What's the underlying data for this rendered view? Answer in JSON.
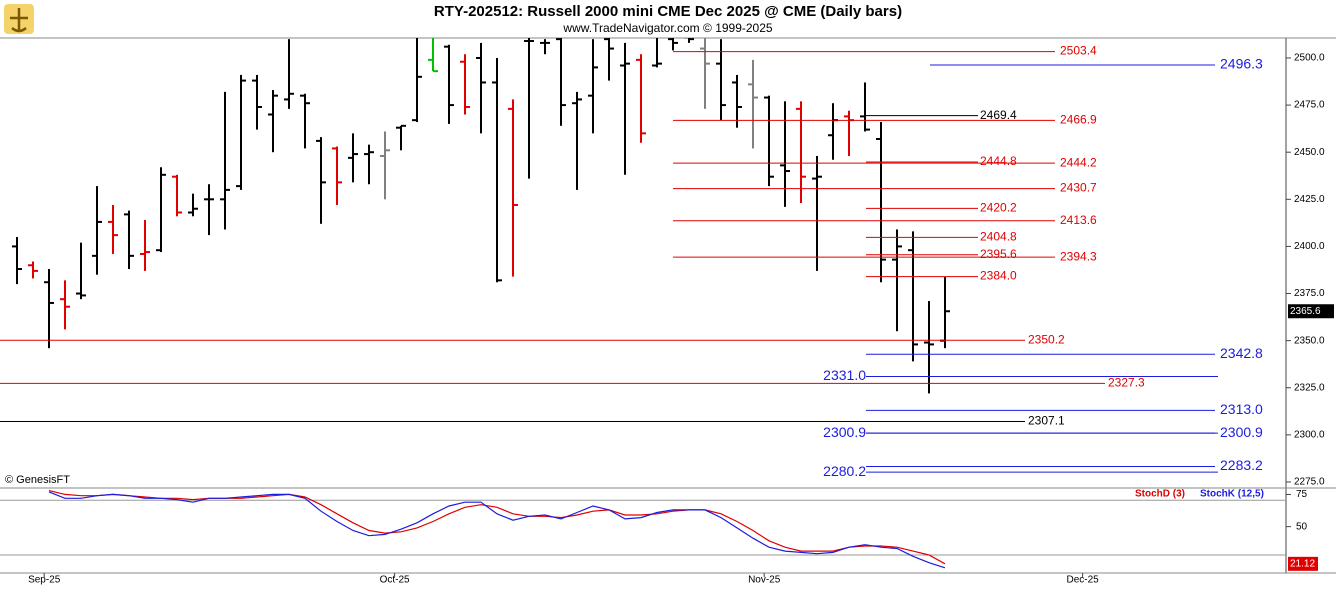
{
  "chart_data": [
    {
      "type": "ohlc",
      "title": "RTY-202512:  Russell 2000 mini CME Dec 2025 @ CME  (Daily bars)",
      "subtitle": "www.TradeNavigator.com © 1999-2025",
      "note": "© GenesisFT",
      "categories": [
        null,
        null,
        null,
        null,
        null,
        null,
        null,
        null,
        null,
        null,
        null,
        null,
        null,
        null,
        null,
        null,
        null,
        null,
        null,
        null,
        null,
        null,
        null,
        null,
        null,
        null,
        null,
        null,
        null,
        null,
        null,
        null,
        null,
        null,
        null,
        null,
        null,
        null,
        null,
        null,
        null,
        null,
        null,
        null,
        null,
        null,
        null,
        null,
        null,
        null,
        null,
        null,
        null,
        null,
        null,
        null,
        null,
        null,
        null
      ],
      "xlim": [
        -1.0625,
        79.3125
      ],
      "xticks": [
        {
          "value": 1.7,
          "label": "Sep-25"
        },
        {
          "value": 23.6,
          "label": "Oct-25"
        },
        {
          "value": 46.7,
          "label": "Nov-25"
        },
        {
          "value": 66.6,
          "label": "Dec-25"
        }
      ],
      "ylim": [
        2271.8,
        2510.6
      ],
      "yticks": [
        {
          "value": 2275,
          "label": "2275.0"
        },
        {
          "value": 2300,
          "label": "2300.0"
        },
        {
          "value": 2325,
          "label": "2325.0"
        },
        {
          "value": 2350,
          "label": "2350.0"
        },
        {
          "value": 2375,
          "label": "2375.0"
        },
        {
          "value": 2400,
          "label": "2400.0"
        },
        {
          "value": 2425,
          "label": "2425.0"
        },
        {
          "value": 2450,
          "label": "2450.0"
        },
        {
          "value": 2475,
          "label": "2475.0"
        },
        {
          "value": 2500,
          "label": "2500.0"
        }
      ],
      "series": [
        {
          "open": [
            2400,
            2390,
            2381,
            2372,
            2375,
            2395,
            2413,
            2417,
            2396,
            2398,
            2437,
            2418,
            2425,
            2425,
            2432,
            2488,
            2470,
            2478,
            2480,
            2456,
            2452,
            2447,
            2449,
            2448,
            2463,
            2467,
            2499,
            2506,
            2498,
            2500,
            2487,
            2473,
            2509,
            2508,
            2510,
            2476,
            2480,
            2510,
            2496,
            2499,
            2496,
            2510,
            2511,
            2505,
            2497,
            2487,
            2486,
            2479,
            2443,
            2473,
            2436,
            2459,
            2469,
            2469,
            2457,
            2393,
            2398,
            2349,
            2350
          ],
          "high": [
            2405,
            2392,
            2388,
            2382,
            2402,
            2432,
            2422,
            2419,
            2414,
            2442,
            2438,
            2428,
            2433,
            2482,
            2491,
            2491,
            2483,
            2510,
            2481,
            2458,
            2453,
            2460,
            2454,
            2461,
            2464,
            2511,
            2511,
            2507,
            2502,
            2508,
            2500,
            2478,
            2511,
            2510,
            2511,
            2482,
            2510,
            2511,
            2508,
            2502,
            2511,
            2516,
            2513,
            2511,
            2510,
            2491,
            2499,
            2480,
            2477,
            2477,
            2448,
            2476,
            2472,
            2487,
            2466,
            2409,
            2408,
            2371,
            2384
          ],
          "low": [
            2380,
            2383,
            2346,
            2356,
            2372,
            2385,
            2396,
            2388,
            2387,
            2397,
            2416,
            2416,
            2406,
            2409,
            2430,
            2462,
            2450,
            2473,
            2452,
            2412,
            2422,
            2434,
            2433,
            2425,
            2451,
            2466,
            2493,
            2465,
            2470,
            2460,
            2381,
            2384,
            2436,
            2502,
            2464,
            2430,
            2460,
            2488,
            2438,
            2455,
            2495,
            2504,
            2508,
            2473,
            2467,
            2463,
            2452,
            2432,
            2421,
            2423,
            2387,
            2446,
            2448,
            2461,
            2381,
            2355,
            2339,
            2322,
            2346
          ],
          "close": [
            2388,
            2387,
            2370,
            2368,
            2374,
            2413,
            2406,
            2395,
            2397,
            2438,
            2418,
            2420,
            2425,
            2430,
            2488,
            2474,
            2480,
            2481,
            2476,
            2434,
            2434,
            2449,
            2450,
            2451,
            2464,
            2490,
            2493,
            2475,
            2474,
            2487,
            2382,
            2422,
            2509,
            2508,
            2475,
            2478,
            2495,
            2505,
            2497,
            2460,
            2497,
            2508,
            2510,
            2497,
            2475,
            2474,
            2479,
            2437,
            2440,
            2437,
            2437,
            2467,
            2467,
            2462,
            2393,
            2400,
            2348,
            2348,
            2365.6
          ],
          "colors": [
            "#000000",
            "#e00000",
            "#000000",
            "#e00000",
            "#000000",
            "#000000",
            "#e00000",
            "#000000",
            "#e00000",
            "#000000",
            "#e00000",
            "#000000",
            "#000000",
            "#000000",
            "#000000",
            "#000000",
            "#000000",
            "#000000",
            "#000000",
            "#000000",
            "#e00000",
            "#000000",
            "#000000",
            "#808080",
            "#000000",
            "#000000",
            "#00c000",
            "#000000",
            "#e00000",
            "#000000",
            "#000000",
            "#e00000",
            "#000000",
            "#000000",
            "#000000",
            "#000000",
            "#000000",
            "#000000",
            "#000000",
            "#e00000",
            "#000000",
            "#000000",
            "#000000",
            "#808080",
            "#000000",
            "#000000",
            "#808080",
            "#000000",
            "#000000",
            "#e00000",
            "#000000",
            "#000000",
            "#e00000",
            "#000000",
            "#000000",
            "#000000",
            "#000000",
            "#000000",
            "#000000"
          ]
        }
      ],
      "levels": [
        {
          "value": 2503.4,
          "label": "2503.4",
          "color": "#e00000"
        },
        {
          "value": 2496.3,
          "label": "2496.3",
          "color": "#1c1ce0"
        },
        {
          "value": 2469.4,
          "label": "2469.4",
          "color": "#000000"
        },
        {
          "value": 2466.9,
          "label": "2466.9",
          "color": "#e00000"
        },
        {
          "value": 2444.8,
          "label": "2444.8",
          "color": "#e00000"
        },
        {
          "value": 2444.2,
          "label": "2444.2",
          "color": "#e00000"
        },
        {
          "value": 2430.7,
          "label": "2430.7",
          "color": "#e00000"
        },
        {
          "value": 2420.2,
          "label": "2420.2",
          "color": "#e00000"
        },
        {
          "value": 2413.6,
          "label": "2413.6",
          "color": "#e00000"
        },
        {
          "value": 2404.8,
          "label": "2404.8",
          "color": "#e00000"
        },
        {
          "value": 2395.6,
          "label": "2395.6",
          "color": "#e00000"
        },
        {
          "value": 2394.3,
          "label": "2394.3",
          "color": "#e00000"
        },
        {
          "value": 2384.0,
          "label": "2384.0",
          "color": "#e00000"
        },
        {
          "value": 2350.2,
          "label": "2350.2",
          "color": "#e00000"
        },
        {
          "value": 2342.8,
          "label": "2342.8",
          "color": "#1c1ce0"
        },
        {
          "value": 2331.0,
          "label": "2331.0",
          "color": "#1c1ce0"
        },
        {
          "value": 2327.3,
          "label": "2327.3",
          "color": "#e00000"
        },
        {
          "value": 2313.0,
          "label": "2313.0",
          "color": "#1c1ce0"
        },
        {
          "value": 2307.1,
          "label": "2307.1",
          "color": "#000000"
        },
        {
          "value": 2300.9,
          "label": "2300.9",
          "color": "#1c1ce0"
        },
        {
          "value": 2300.9,
          "label": "2300.9",
          "color": "#1c1ce0"
        },
        {
          "value": 2283.2,
          "label": "2283.2",
          "color": "#1c1ce0"
        },
        {
          "value": 2280.2,
          "label": "2280.2",
          "color": "#1c1ce0"
        }
      ]
    },
    {
      "type": "line",
      "ylim": [
        14,
        80
      ],
      "yticks": [
        75,
        50
      ],
      "ref_lines": [
        70.5,
        28
      ],
      "series": [
        {
          "name": "StochD (3)",
          "color": "#e00000",
          "values": [
            null,
            null,
            78,
            75,
            74,
            74,
            75,
            74,
            73,
            72,
            72,
            71,
            72,
            72,
            72,
            73,
            74,
            75,
            73,
            67,
            60,
            53,
            47,
            45,
            46,
            49,
            54,
            60,
            65,
            67,
            65,
            60,
            58,
            58,
            57,
            59,
            62,
            63,
            59,
            59,
            60,
            62,
            63,
            63,
            60,
            54,
            47,
            39,
            34,
            31,
            31,
            31,
            34,
            35,
            35,
            34,
            31,
            28,
            21.12
          ]
        },
        {
          "name": "StochK (12,5)",
          "color": "#1c1ce0",
          "values": [
            null,
            null,
            77,
            72,
            72,
            74,
            75,
            74,
            72,
            72,
            71,
            69,
            72,
            72,
            73,
            74,
            75,
            75,
            72,
            62,
            54,
            47,
            43,
            44,
            48,
            53,
            60,
            66,
            69,
            69,
            60,
            55,
            58,
            59,
            56,
            61,
            66,
            63,
            56,
            57,
            61,
            63,
            63,
            63,
            57,
            49,
            41,
            34,
            31,
            30,
            29,
            30,
            34,
            36,
            34,
            33,
            27,
            22,
            18
          ]
        }
      ]
    }
  ]
}
